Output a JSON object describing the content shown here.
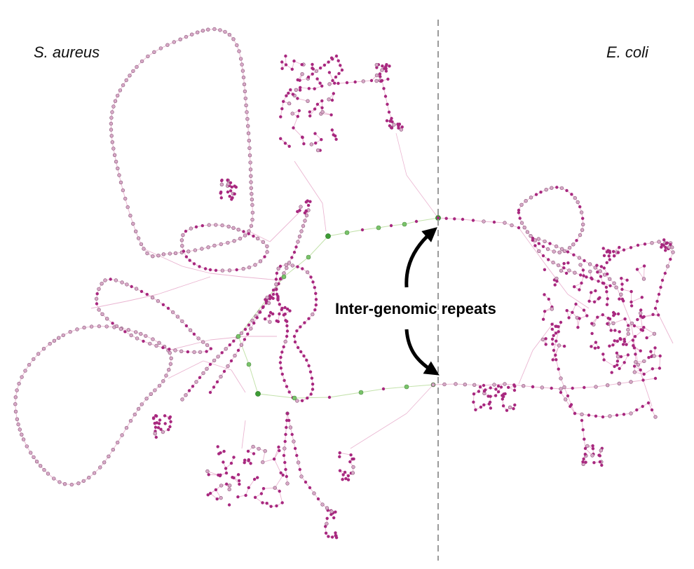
{
  "labels": {
    "left_genome": "S. aureus",
    "right_genome": "E. coli",
    "annotation": "Inter-genomic repeats"
  },
  "colors": {
    "node_dark": "#a8287f",
    "node_light": "#d7a9c7",
    "node_green": "#79c36a",
    "node_green_dark": "#3d9b35",
    "edge_pink": "#e6a8c9",
    "edge_green": "#b9dd9c",
    "divider": "#9a9a9a",
    "arrow": "#000000"
  }
}
